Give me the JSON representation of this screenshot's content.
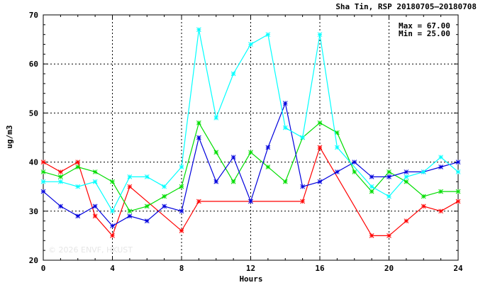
{
  "chart_data": {
    "type": "line",
    "title": "Sha Tin, RSP 20180705—20180708",
    "xlabel": "Hours",
    "ylabel": "ug/m3",
    "xlim": [
      0,
      24
    ],
    "ylim": [
      20,
      70
    ],
    "x_ticks": [
      0,
      4,
      8,
      12,
      16,
      20,
      24
    ],
    "y_ticks": [
      20,
      30,
      40,
      50,
      60,
      70
    ],
    "grid": true,
    "stats": {
      "max": "Max = 67.00",
      "min": "Min = 25.00"
    },
    "watermark": "© 2026  ENVF, HKUST",
    "x": [
      0,
      1,
      2,
      3,
      4,
      5,
      6,
      7,
      8,
      9,
      10,
      11,
      12,
      13,
      14,
      15,
      16,
      17,
      18,
      19,
      20,
      21,
      22,
      23,
      24
    ],
    "series": [
      {
        "color": "#ff0000",
        "values": [
          40,
          38,
          40,
          29,
          25,
          35,
          null,
          null,
          26,
          32,
          null,
          null,
          32,
          null,
          null,
          32,
          43,
          null,
          null,
          25,
          25,
          28,
          31,
          30,
          32
        ]
      },
      {
        "color": "#00dd00",
        "values": [
          38,
          37,
          39,
          38,
          36,
          30,
          31,
          33,
          35,
          48,
          42,
          36,
          42,
          39,
          36,
          45,
          48,
          46,
          38,
          34,
          38,
          36,
          33,
          34,
          34
        ]
      },
      {
        "color": "#0000dd",
        "values": [
          34,
          31,
          29,
          31,
          27,
          29,
          28,
          31,
          30,
          45,
          36,
          41,
          32,
          43,
          52,
          35,
          36,
          38,
          40,
          37,
          37,
          38,
          38,
          39,
          40
        ]
      },
      {
        "color": "#00ffff",
        "values": [
          36,
          36,
          35,
          36,
          30,
          37,
          37,
          35,
          39,
          67,
          49,
          58,
          64,
          66,
          47,
          45,
          66,
          43,
          null,
          35,
          33,
          37,
          38,
          41,
          38
        ]
      }
    ]
  }
}
